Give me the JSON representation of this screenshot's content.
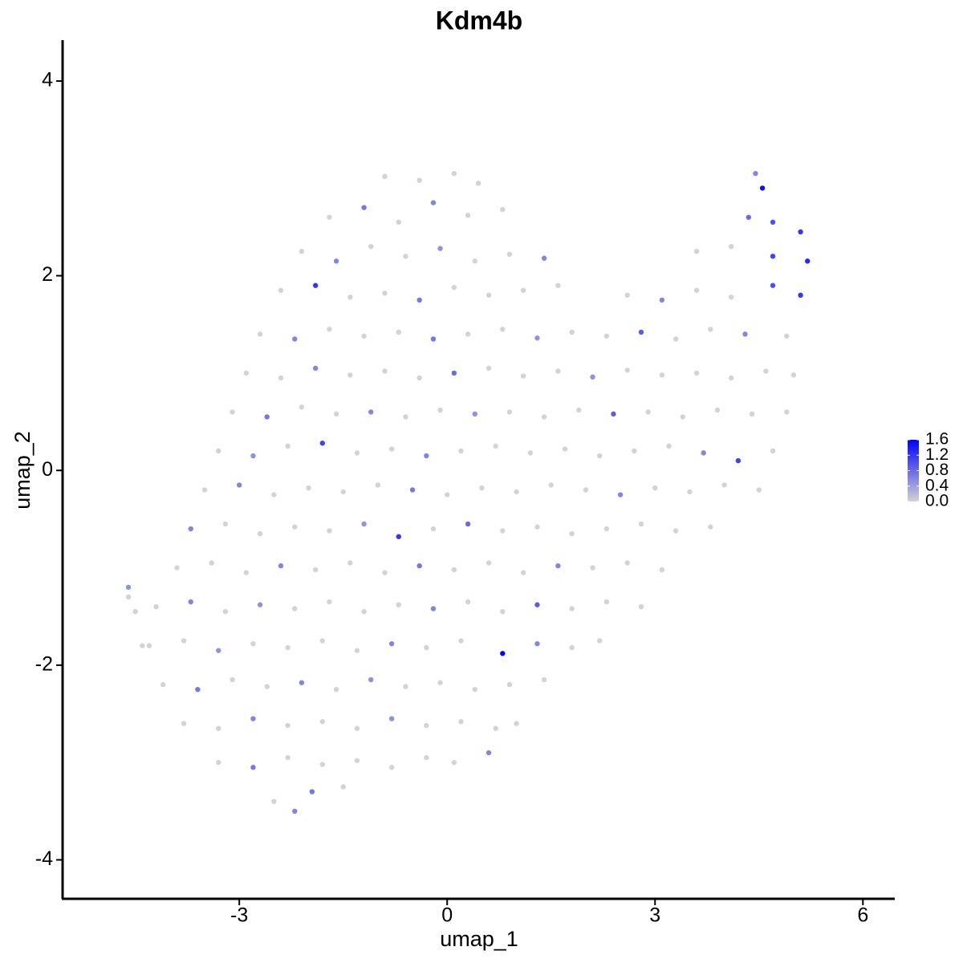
{
  "chart_data": {
    "type": "scatter",
    "title": "Kdm4b",
    "x_label": "umap_1",
    "y_label": "umap_2",
    "xlim": [
      -5.55,
      6.46
    ],
    "ylim": [
      -4.4,
      4.42
    ],
    "xticks": [
      -3,
      0,
      3,
      6
    ],
    "yticks": [
      -4,
      -2,
      0,
      2,
      4
    ],
    "color_low": "#d3d3d3",
    "color_high": "#0000ff",
    "clim": [
      0,
      1.6
    ],
    "colorbar_ticks": [
      {
        "value": 0,
        "label": "0.0"
      },
      0.4,
      0.8,
      1.2,
      1.6
    ],
    "x": [
      -0.9,
      -0.4,
      0.1,
      0.45,
      4.45,
      4.55,
      -1.7,
      -1.2,
      -0.7,
      -0.2,
      0.3,
      0.8,
      4.35,
      4.7,
      5.1,
      -2.1,
      -1.6,
      -1.1,
      -0.6,
      -0.1,
      0.4,
      0.9,
      1.4,
      3.6,
      4.1,
      4.7,
      5.2,
      -2.4,
      -1.9,
      -1.4,
      -0.9,
      -0.4,
      0.1,
      0.6,
      1.1,
      1.6,
      2.6,
      3.1,
      3.6,
      4.1,
      4.7,
      5.1,
      -2.7,
      -2.2,
      -1.7,
      -1.2,
      -0.7,
      -0.2,
      0.3,
      0.8,
      1.3,
      1.8,
      2.3,
      2.8,
      3.3,
      3.8,
      4.3,
      4.9,
      -2.9,
      -2.4,
      -1.9,
      -1.4,
      -0.9,
      -0.4,
      0.1,
      0.6,
      1.1,
      1.6,
      2.1,
      2.6,
      3.1,
      3.6,
      4.1,
      4.6,
      5.0,
      -3.1,
      -2.6,
      -2.1,
      -1.6,
      -1.1,
      -0.6,
      -0.1,
      0.4,
      0.9,
      1.4,
      1.9,
      2.4,
      2.9,
      3.4,
      3.9,
      4.4,
      4.9,
      -3.3,
      -2.8,
      -2.3,
      -1.8,
      -1.3,
      -0.8,
      -0.3,
      0.2,
      0.7,
      1.2,
      1.7,
      2.2,
      2.7,
      3.2,
      3.7,
      4.2,
      4.7,
      -3.5,
      -3.0,
      -2.5,
      -2.0,
      -1.5,
      -1.0,
      -0.5,
      0.0,
      0.5,
      1.0,
      1.5,
      2.0,
      2.5,
      3.0,
      3.5,
      4.0,
      4.5,
      -3.7,
      -3.2,
      -2.7,
      -2.2,
      -1.7,
      -1.2,
      -0.7,
      -0.2,
      0.3,
      0.8,
      1.3,
      1.8,
      2.3,
      2.8,
      3.3,
      3.8,
      -3.9,
      -3.4,
      -2.9,
      -2.4,
      -1.9,
      -1.4,
      -0.9,
      -0.4,
      0.1,
      0.6,
      1.1,
      1.6,
      2.1,
      2.6,
      3.1,
      -4.2,
      -3.7,
      -3.2,
      -2.7,
      -2.2,
      -1.7,
      -1.2,
      -0.7,
      -0.2,
      0.3,
      0.8,
      1.3,
      1.8,
      2.3,
      2.8,
      -4.3,
      -3.8,
      -3.3,
      -2.8,
      -2.3,
      -1.8,
      -1.3,
      -0.8,
      -0.3,
      0.2,
      0.8,
      1.3,
      1.8,
      2.2,
      -4.1,
      -3.6,
      -3.1,
      -2.6,
      -2.1,
      -1.6,
      -1.1,
      -0.6,
      -0.1,
      0.4,
      0.9,
      1.4,
      -3.8,
      -3.3,
      -2.8,
      -2.3,
      -1.8,
      -1.3,
      -0.8,
      -0.3,
      0.2,
      0.7,
      1.0,
      -3.3,
      -2.8,
      -2.3,
      -1.8,
      -1.3,
      -0.8,
      -0.3,
      0.1,
      0.6,
      -2.5,
      -2.2,
      -1.95,
      -1.5,
      -4.6,
      -4.6,
      -4.5,
      -4.4
    ],
    "y": [
      3.02,
      2.98,
      3.05,
      2.95,
      3.05,
      2.9,
      2.6,
      2.7,
      2.55,
      2.75,
      2.62,
      2.68,
      2.6,
      2.55,
      2.45,
      2.25,
      2.15,
      2.3,
      2.2,
      2.28,
      2.15,
      2.22,
      2.18,
      2.25,
      2.3,
      2.2,
      2.15,
      1.85,
      1.9,
      1.78,
      1.82,
      1.75,
      1.88,
      1.8,
      1.85,
      1.9,
      1.8,
      1.75,
      1.85,
      1.78,
      1.9,
      1.8,
      1.4,
      1.35,
      1.45,
      1.38,
      1.42,
      1.35,
      1.4,
      1.45,
      1.36,
      1.42,
      1.38,
      1.42,
      1.35,
      1.45,
      1.4,
      1.38,
      1.0,
      0.95,
      1.05,
      0.98,
      1.02,
      0.95,
      1.0,
      1.05,
      0.97,
      1.02,
      0.96,
      1.03,
      0.98,
      1.0,
      0.95,
      1.02,
      0.98,
      0.6,
      0.55,
      0.65,
      0.58,
      0.6,
      0.55,
      0.62,
      0.58,
      0.6,
      0.55,
      0.62,
      0.58,
      0.6,
      0.55,
      0.62,
      0.58,
      0.6,
      0.2,
      0.15,
      0.25,
      0.28,
      0.18,
      0.22,
      0.15,
      0.2,
      0.25,
      0.18,
      0.22,
      0.15,
      0.2,
      0.25,
      0.18,
      0.1,
      0.2,
      -0.2,
      -0.15,
      -0.25,
      -0.18,
      -0.22,
      -0.15,
      -0.2,
      -0.25,
      -0.18,
      -0.22,
      -0.15,
      -0.2,
      -0.25,
      -0.18,
      -0.22,
      -0.15,
      -0.2,
      -0.6,
      -0.55,
      -0.65,
      -0.58,
      -0.62,
      -0.55,
      -0.68,
      -0.6,
      -0.55,
      -0.62,
      -0.58,
      -0.65,
      -0.6,
      -0.55,
      -0.62,
      -0.58,
      -1.0,
      -0.95,
      -1.05,
      -0.98,
      -1.02,
      -0.95,
      -1.05,
      -0.98,
      -1.02,
      -0.95,
      -1.05,
      -0.98,
      -1.0,
      -0.95,
      -1.02,
      -1.4,
      -1.35,
      -1.45,
      -1.38,
      -1.42,
      -1.35,
      -1.45,
      -1.38,
      -1.42,
      -1.35,
      -1.45,
      -1.38,
      -1.42,
      -1.35,
      -1.4,
      -1.8,
      -1.75,
      -1.85,
      -1.78,
      -1.82,
      -1.75,
      -1.85,
      -1.78,
      -1.82,
      -1.75,
      -1.88,
      -1.78,
      -1.82,
      -1.75,
      -2.2,
      -2.25,
      -2.15,
      -2.22,
      -2.18,
      -2.25,
      -2.15,
      -2.22,
      -2.18,
      -2.25,
      -2.2,
      -2.15,
      -2.6,
      -2.65,
      -2.55,
      -2.62,
      -2.58,
      -2.65,
      -2.55,
      -2.62,
      -2.58,
      -2.65,
      -2.6,
      -3.0,
      -3.05,
      -2.95,
      -3.02,
      -2.98,
      -3.05,
      -2.95,
      -3.0,
      -2.9,
      -3.4,
      -3.5,
      -3.3,
      -3.25,
      -1.2,
      -1.3,
      -1.45,
      -1.8
    ],
    "values": [
      0,
      0,
      0,
      0,
      0.6,
      1.5,
      0,
      0.7,
      0,
      0.6,
      0,
      0,
      0.8,
      1.0,
      1.2,
      0,
      0.6,
      0,
      0,
      0.5,
      0,
      0,
      0.6,
      0,
      0,
      1.1,
      1.3,
      0,
      1.2,
      0,
      0,
      0.7,
      0,
      0,
      0,
      0,
      0,
      0.6,
      0,
      0,
      1.0,
      1.2,
      0,
      0.6,
      0,
      0,
      0,
      0.7,
      0,
      0,
      0.5,
      0,
      0,
      0.9,
      0,
      0,
      0.6,
      0,
      0,
      0,
      0.6,
      0,
      0,
      0,
      0.8,
      0,
      0,
      0,
      0.5,
      0,
      0,
      0,
      0,
      0,
      0,
      0,
      0.7,
      0,
      0,
      0.6,
      0,
      0,
      0.5,
      0,
      0,
      0,
      0.9,
      0,
      0,
      0,
      0,
      0,
      0,
      0.5,
      0,
      1.1,
      0,
      0,
      0.6,
      0,
      0,
      0,
      0,
      0,
      0,
      0,
      0.6,
      1.1,
      0,
      0,
      0.6,
      0,
      0,
      0,
      0,
      0.7,
      0,
      0,
      0,
      0,
      0,
      0.6,
      0,
      0,
      0,
      0,
      0.6,
      0,
      0,
      0,
      0,
      0.5,
      1.2,
      0,
      0.8,
      0,
      0,
      0,
      0,
      0,
      0,
      0,
      0,
      0,
      0,
      0.6,
      0,
      0,
      0,
      0.7,
      0,
      0,
      0,
      0.6,
      0,
      0,
      0,
      0,
      0.6,
      0,
      0.5,
      0,
      0,
      0,
      0,
      0.6,
      0,
      0,
      0.9,
      0,
      0,
      0,
      0,
      0,
      0.5,
      0,
      0,
      0,
      0,
      0.6,
      0,
      0,
      1.6,
      0.6,
      0,
      0,
      0,
      0.7,
      0,
      0,
      0.6,
      0,
      0.5,
      0,
      0,
      0,
      0,
      0,
      0,
      0,
      0.6,
      0,
      0,
      0,
      0.5,
      0,
      0,
      0,
      0,
      0,
      0.7,
      0,
      0,
      0,
      0,
      0,
      0,
      0.6,
      0,
      0.6,
      0.7,
      0,
      0.5,
      0,
      0,
      0
    ]
  }
}
